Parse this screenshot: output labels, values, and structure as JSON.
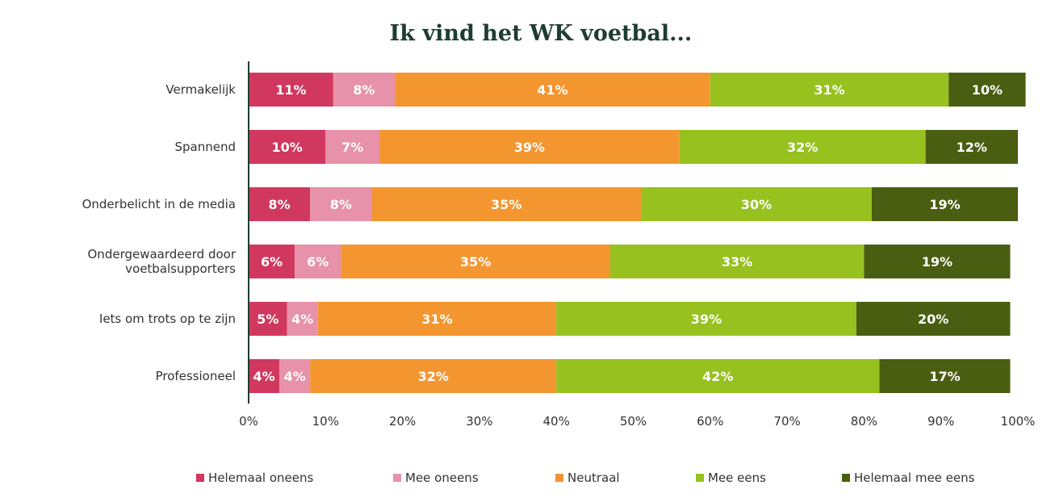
{
  "chart_data": {
    "type": "bar",
    "orientation": "horizontal",
    "stacked": true,
    "title": "Ik vind het WK voetbal...",
    "categories": [
      "Vermakelijk",
      "Spannend",
      "Onderbelicht in de media",
      "Ondergewaardeerd door voetbalsupporters",
      "Iets om trots op te zijn",
      "Professioneel"
    ],
    "series": [
      {
        "name": "Helemaal oneens",
        "color": "#d1385f",
        "values": [
          11,
          10,
          8,
          6,
          5,
          4
        ]
      },
      {
        "name": "Mee oneens",
        "color": "#e891aa",
        "values": [
          8,
          7,
          8,
          6,
          4,
          4
        ]
      },
      {
        "name": "Neutraal",
        "color": "#f39630",
        "values": [
          41,
          39,
          35,
          35,
          31,
          32
        ]
      },
      {
        "name": "Mee eens",
        "color": "#96c11f",
        "values": [
          31,
          32,
          30,
          33,
          39,
          42
        ]
      },
      {
        "name": "Helemaal mee eens",
        "color": "#4a5e12",
        "values": [
          10,
          12,
          19,
          19,
          20,
          17
        ]
      }
    ],
    "value_labels": [
      [
        "11%",
        "10%",
        "8%",
        "6%",
        "5%",
        "4%"
      ],
      [
        "8%",
        "7%",
        "8%",
        "6%",
        "4%",
        "4%"
      ],
      [
        "41%",
        "39%",
        "35%",
        "35%",
        "31%",
        "32%"
      ],
      [
        "31%",
        "32%",
        "30%",
        "33%",
        "39%",
        "42%"
      ],
      [
        "10%",
        "12%",
        "19%",
        "19%",
        "20%",
        "17%"
      ]
    ],
    "xlim": [
      0,
      100
    ],
    "x_ticks": [
      "0%",
      "10%",
      "20%",
      "30%",
      "40%",
      "50%",
      "60%",
      "70%",
      "80%",
      "90%",
      "100%"
    ],
    "grid": false,
    "legend_position": "bottom"
  }
}
